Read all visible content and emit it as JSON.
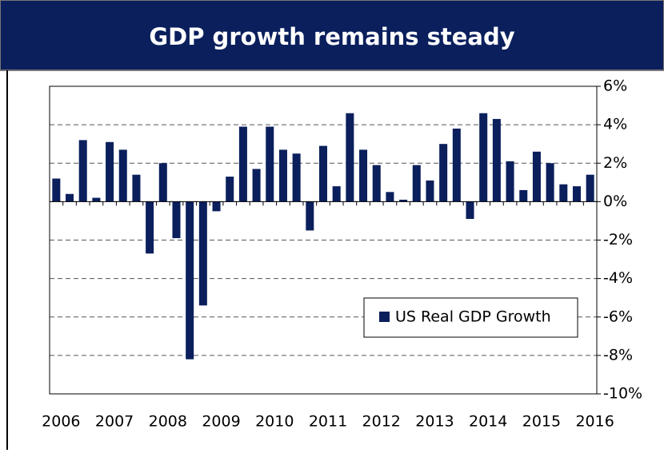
{
  "chart_data": {
    "type": "bar",
    "title": "GDP growth remains steady",
    "categories": [
      "2006",
      null,
      null,
      null,
      "2007",
      null,
      null,
      null,
      "2008",
      null,
      null,
      null,
      "2009",
      null,
      null,
      null,
      "2010",
      null,
      null,
      null,
      "2011",
      null,
      null,
      null,
      "2012",
      null,
      null,
      null,
      "2013",
      null,
      null,
      null,
      "2014",
      null,
      null,
      null,
      "2015",
      null,
      null,
      null,
      "2016"
    ],
    "series": [
      {
        "name": "US Real GDP Growth",
        "color": "#0a1f5c",
        "values": [
          1.2,
          0.4,
          3.2,
          0.2,
          3.1,
          2.7,
          1.4,
          -2.7,
          2.0,
          -1.9,
          -8.2,
          -5.4,
          -0.5,
          1.3,
          3.9,
          1.7,
          3.9,
          2.7,
          2.5,
          -1.5,
          2.9,
          0.8,
          4.6,
          2.7,
          1.9,
          0.5,
          0.1,
          1.9,
          1.1,
          3.0,
          3.8,
          -0.9,
          4.6,
          4.3,
          2.1,
          0.6,
          2.6,
          2.0,
          0.9,
          0.8,
          1.4
        ]
      }
    ],
    "ylim": [
      -10,
      6
    ],
    "yticks": [
      {
        "value": 6,
        "label": "6%"
      },
      {
        "value": 4,
        "label": "4%"
      },
      {
        "value": 2,
        "label": "2%"
      },
      {
        "value": 0,
        "label": "0%"
      },
      {
        "value": -2,
        "label": "-2%"
      },
      {
        "value": -4,
        "label": "-4%"
      },
      {
        "value": -6,
        "label": "-6%"
      },
      {
        "value": -8,
        "label": "-8%"
      },
      {
        "value": -10,
        "label": "-10%"
      }
    ],
    "grid": true
  }
}
